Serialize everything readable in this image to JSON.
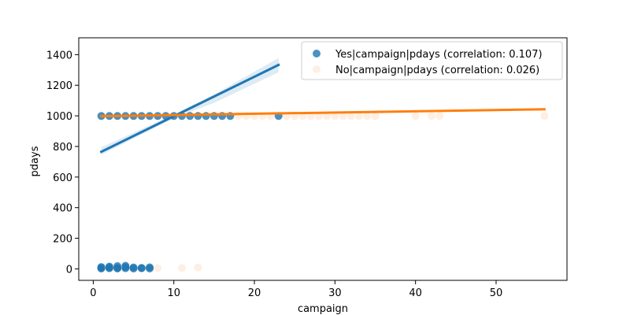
{
  "chart_data": {
    "type": "scatter",
    "xlabel": "campaign",
    "ylabel": "pdays",
    "xlim": [
      -1.8,
      58.8
    ],
    "ylim": [
      -75,
      1510
    ],
    "xticks": [
      0,
      10,
      20,
      30,
      40,
      50
    ],
    "yticks": [
      0,
      200,
      400,
      600,
      800,
      1000,
      1200,
      1400
    ],
    "grid": false,
    "legend_position": "top-right",
    "series": [
      {
        "name": "Yes|campaign|pdays (correlation: 0.107)",
        "color": "#1f77b4",
        "alpha": 0.8,
        "points": [
          [
            1,
            999
          ],
          [
            2,
            999
          ],
          [
            3,
            999
          ],
          [
            4,
            999
          ],
          [
            5,
            999
          ],
          [
            6,
            999
          ],
          [
            7,
            999
          ],
          [
            8,
            999
          ],
          [
            9,
            999
          ],
          [
            10,
            999
          ],
          [
            11,
            999
          ],
          [
            12,
            999
          ],
          [
            13,
            999
          ],
          [
            14,
            999
          ],
          [
            15,
            999
          ],
          [
            16,
            999
          ],
          [
            17,
            999
          ],
          [
            23,
            999
          ],
          [
            1,
            3
          ],
          [
            1,
            6
          ],
          [
            1,
            12
          ],
          [
            2,
            4
          ],
          [
            2,
            9
          ],
          [
            2,
            15
          ],
          [
            3,
            3
          ],
          [
            3,
            6
          ],
          [
            3,
            18
          ],
          [
            4,
            4
          ],
          [
            4,
            12
          ],
          [
            4,
            20
          ],
          [
            5,
            3
          ],
          [
            5,
            9
          ],
          [
            6,
            6
          ],
          [
            6,
            4
          ],
          [
            7,
            10
          ],
          [
            7,
            3
          ]
        ],
        "regression": {
          "x": [
            1,
            23
          ],
          "y": [
            765,
            1333
          ]
        },
        "ci_band": {
          "x": [
            1,
            10,
            15,
            23
          ],
          "upper": [
            795,
            1010,
            1140,
            1378
          ],
          "lower": [
            745,
            985,
            1085,
            1285
          ]
        }
      },
      {
        "name": "No|campaign|pdays (correlation: 0.026)",
        "color": "#ff7f0e",
        "alpha": 0.12,
        "points": [
          [
            1,
            999
          ],
          [
            2,
            999
          ],
          [
            3,
            999
          ],
          [
            4,
            999
          ],
          [
            5,
            999
          ],
          [
            6,
            999
          ],
          [
            7,
            999
          ],
          [
            8,
            999
          ],
          [
            9,
            999
          ],
          [
            10,
            999
          ],
          [
            11,
            999
          ],
          [
            12,
            999
          ],
          [
            13,
            999
          ],
          [
            14,
            999
          ],
          [
            15,
            999
          ],
          [
            16,
            999
          ],
          [
            17,
            999
          ],
          [
            18,
            999
          ],
          [
            19,
            999
          ],
          [
            20,
            999
          ],
          [
            21,
            999
          ],
          [
            22,
            999
          ],
          [
            23,
            999
          ],
          [
            24,
            999
          ],
          [
            25,
            999
          ],
          [
            26,
            999
          ],
          [
            27,
            999
          ],
          [
            28,
            999
          ],
          [
            29,
            999
          ],
          [
            30,
            999
          ],
          [
            31,
            999
          ],
          [
            32,
            999
          ],
          [
            33,
            999
          ],
          [
            34,
            999
          ],
          [
            35,
            999
          ],
          [
            40,
            999
          ],
          [
            42,
            999
          ],
          [
            43,
            999
          ],
          [
            56,
            999
          ],
          [
            1,
            3
          ],
          [
            1,
            6
          ],
          [
            2,
            4
          ],
          [
            2,
            9
          ],
          [
            3,
            6
          ],
          [
            3,
            3
          ],
          [
            4,
            4
          ],
          [
            5,
            3
          ],
          [
            6,
            6
          ],
          [
            7,
            3
          ],
          [
            8,
            6
          ],
          [
            11,
            6
          ],
          [
            13,
            9
          ]
        ],
        "regression": {
          "x": [
            1,
            56
          ],
          "y": [
            998,
            1043
          ]
        },
        "ci_band": {
          "x": [
            1,
            56
          ],
          "upper": [
            1001,
            1050
          ],
          "lower": [
            995,
            1036
          ]
        }
      }
    ]
  }
}
